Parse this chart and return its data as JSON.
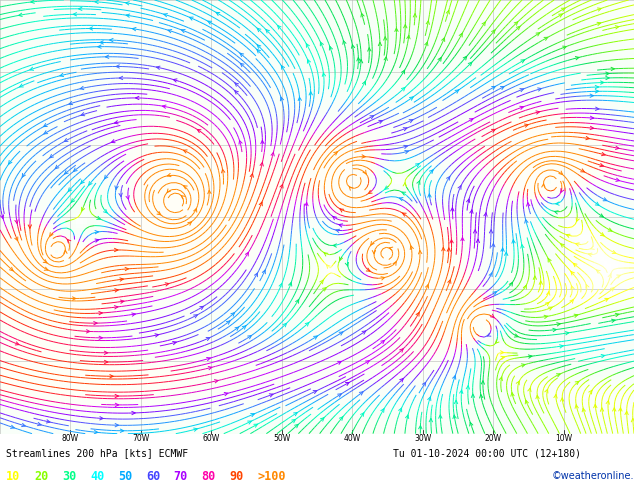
{
  "title_left": "Streamlines 200 hPa [kts] ECMWF",
  "title_right": "Tu 01-10-2024 00:00 UTC (12+180)",
  "watermark": "©weatheronline.co.uk",
  "legend_values": [
    "10",
    "20",
    "30",
    "40",
    "50",
    "60",
    "70",
    "80",
    "90",
    ">100"
  ],
  "legend_colors": [
    "#ffff00",
    "#88ff00",
    "#00ff88",
    "#00ffff",
    "#00aaff",
    "#4444ff",
    "#aa00ff",
    "#ff00aa",
    "#ff4400",
    "#ff8800"
  ],
  "plot_bg": "#ffffff",
  "grid_color": "#999999",
  "figsize": [
    6.34,
    4.9
  ],
  "dpi": 100,
  "speed_colors": {
    "10": "#ffff00",
    "20": "#88ff00",
    "30": "#00ee44",
    "40": "#00ffcc",
    "50": "#00ccff",
    "60": "#0066ff",
    "70": "#6600ff",
    "80": "#cc00ff",
    "90": "#ff0088",
    "100": "#ff2200",
    "120": "#ff8800"
  },
  "vmin": 0,
  "vmax": 120,
  "seed": 1234
}
